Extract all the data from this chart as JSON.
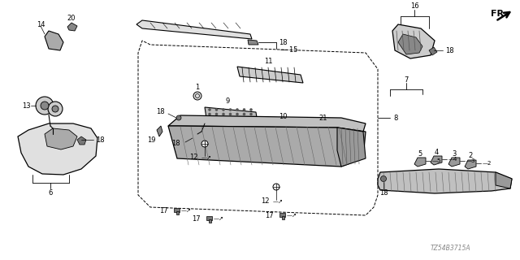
{
  "bg_color": "#ffffff",
  "watermark": "TZ54B3715A",
  "lw_thin": 0.5,
  "lw_med": 0.8,
  "lw_thick": 1.0,
  "label_fs": 7,
  "small_fs": 6,
  "fig_w": 6.4,
  "fig_h": 3.2,
  "dpi": 100
}
